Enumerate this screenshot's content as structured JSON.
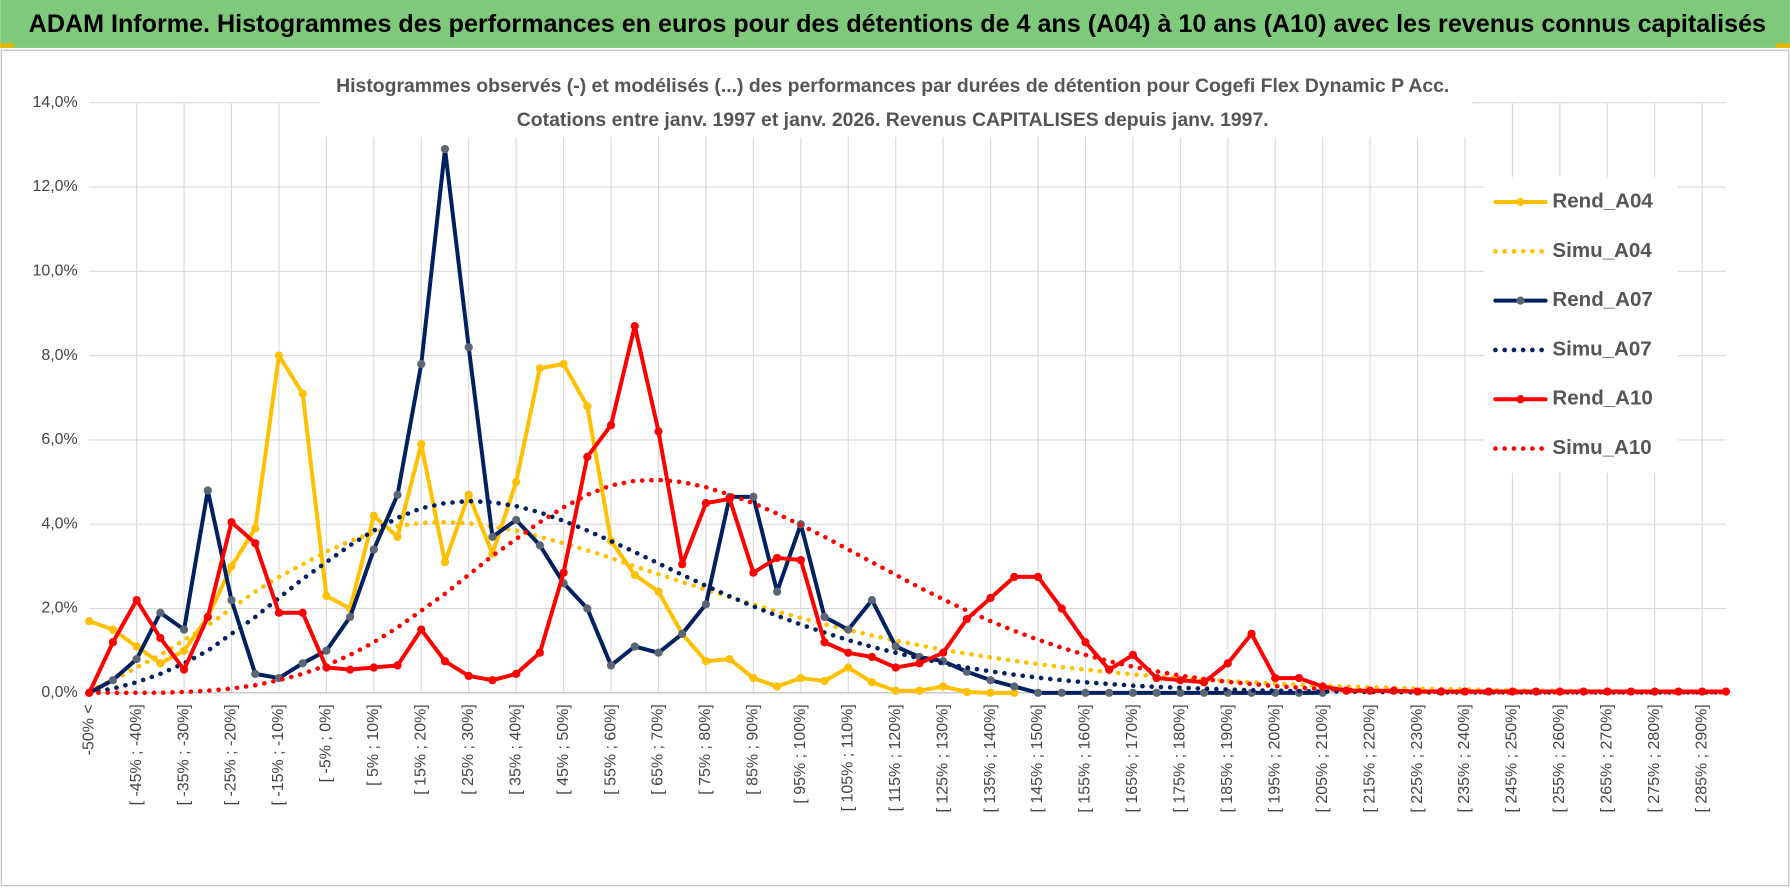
{
  "header": {
    "title": "ADAM Informe. Histogrammes des performances en euros pour des détentions de 4 ans (A04) à 10 ans (A10) avec les revenus connus capitalisés"
  },
  "chart_data": {
    "type": "line",
    "title": "Histogrammes observés (-) et modélisés (...) des performances par durées de détention pour Cogefi Flex Dynamic P Acc.",
    "subtitle": "Cotations entre janv. 1997 et janv. 2026. Revenus CAPITALISES depuis janv. 1997.",
    "categories": [
      "-50% <",
      null,
      "[ -45% ; -40%]",
      null,
      "[ -35% ; -30%]",
      null,
      "[ -25% ; -20%]",
      null,
      "[ -15% ; -10%]",
      null,
      "[ -5% ; 0%]",
      null,
      "[ 5% ; 10%]",
      null,
      "[ 15% ; 20%]",
      null,
      "[ 25% ; 30%]",
      null,
      "[ 35% ; 40%]",
      null,
      "[ 45% ; 50%]",
      null,
      "[ 55% ; 60%]",
      null,
      "[ 65% ; 70%]",
      null,
      "[ 75% ; 80%]",
      null,
      "[ 85% ; 90%]",
      null,
      "[ 95% ; 100%]",
      null,
      "[ 105% ; 110%]",
      null,
      "[ 115% ; 120%]",
      null,
      "[ 125% ; 130%]",
      null,
      "[ 135% ; 140%]",
      null,
      "[ 145% ; 150%]",
      null,
      "[ 155% ; 160%]",
      null,
      "[ 165% ; 170%]",
      null,
      "[ 175% ; 180%]",
      null,
      "[ 185% ; 190%]",
      null,
      "[ 195% ; 200%]",
      null,
      "[ 205% ; 210%]",
      null,
      "[ 215% ; 220%]",
      null,
      "[ 225% ; 230%]",
      null,
      "[ 235% ; 240%]",
      null,
      "[ 245% ; 250%]",
      null,
      "[ 255% ; 260%]",
      null,
      "[ 265% ; 270%]",
      null,
      "[ 275% ; 280%]",
      null,
      "[ 285% ; 290%]",
      null
    ],
    "ylim": [
      0,
      14
    ],
    "yticks": [
      {
        "value": 0,
        "label": "0,0%"
      },
      {
        "value": 2,
        "label": "2,0%"
      },
      {
        "value": 4,
        "label": "4,0%"
      },
      {
        "value": 6,
        "label": "6,0%"
      },
      {
        "value": 8,
        "label": "8,0%"
      },
      {
        "value": 10,
        "label": "10,0%"
      },
      {
        "value": 12,
        "label": "12,0%"
      },
      {
        "value": 14,
        "label": "14,0%"
      }
    ],
    "grid": true,
    "legend": "right",
    "series": [
      {
        "name": "Rend_A04",
        "color": "#ffc000",
        "style": "solid",
        "markers": true,
        "values": [
          1.7,
          1.5,
          1.1,
          0.7,
          1.0,
          1.8,
          3.0,
          3.9,
          8.0,
          7.1,
          2.3,
          2.0,
          4.2,
          3.7,
          5.9,
          3.1,
          4.7,
          3.3,
          5.0,
          7.7,
          7.8,
          6.8,
          3.6,
          2.8,
          2.4,
          1.4,
          0.75,
          0.8,
          0.35,
          0.15,
          0.35,
          0.28,
          0.6,
          0.25,
          0.05,
          0.05,
          0.15,
          0.02,
          0.0,
          0.0,
          null,
          null,
          null,
          null,
          null,
          null,
          null,
          null,
          null,
          null,
          null,
          null,
          null,
          null,
          null,
          null,
          null,
          null,
          null,
          null,
          null,
          null,
          null,
          null,
          null,
          null,
          null,
          null,
          null,
          null
        ]
      },
      {
        "name": "Simu_A04",
        "color": "#ffc000",
        "style": "dotted",
        "markers": false,
        "values": [
          0.05,
          0.3,
          0.6,
          0.9,
          1.25,
          1.6,
          2.0,
          2.4,
          2.75,
          3.05,
          3.35,
          3.6,
          3.8,
          3.95,
          4.03,
          4.05,
          4.02,
          3.95,
          3.85,
          3.7,
          3.55,
          3.38,
          3.2,
          3.0,
          2.82,
          2.63,
          2.45,
          2.27,
          2.1,
          1.93,
          1.78,
          1.63,
          1.49,
          1.36,
          1.24,
          1.13,
          1.02,
          0.93,
          0.84,
          0.76,
          0.68,
          0.61,
          0.55,
          0.49,
          0.44,
          0.39,
          0.35,
          0.31,
          0.28,
          0.25,
          0.22,
          0.19,
          0.17,
          0.15,
          0.13,
          0.12,
          0.1,
          0.09,
          0.08,
          0.07,
          0.06,
          0.05,
          0.05,
          0.04,
          0.04,
          0.03,
          0.03,
          0.02,
          0.02,
          0.02
        ]
      },
      {
        "name": "Rend_A07",
        "color": "#002060",
        "marker_color": "#5b6573",
        "style": "solid",
        "markers": true,
        "values": [
          0.0,
          0.3,
          0.8,
          1.9,
          1.5,
          4.8,
          2.2,
          0.45,
          0.35,
          0.7,
          1.0,
          1.8,
          3.4,
          4.7,
          7.8,
          12.9,
          8.2,
          3.7,
          4.1,
          3.5,
          2.6,
          2.0,
          0.65,
          1.1,
          0.95,
          1.4,
          2.1,
          4.65,
          4.65,
          2.4,
          4.0,
          1.8,
          1.5,
          2.2,
          1.1,
          0.85,
          0.75,
          0.5,
          0.3,
          0.15,
          0.0,
          0.0,
          0.0,
          0.0,
          0.0,
          0.0,
          0.0,
          0.0,
          0.0,
          0.0,
          0.0,
          0.0,
          0.0,
          null,
          null,
          null,
          null,
          null,
          null,
          null,
          null,
          null,
          null,
          null,
          null,
          null,
          null,
          null,
          null,
          null
        ]
      },
      {
        "name": "Simu_A07",
        "color": "#002060",
        "style": "dotted",
        "markers": false,
        "values": [
          0.0,
          0.1,
          0.25,
          0.45,
          0.7,
          1.0,
          1.4,
          1.8,
          2.25,
          2.7,
          3.1,
          3.5,
          3.85,
          4.15,
          4.38,
          4.5,
          4.55,
          4.52,
          4.43,
          4.28,
          4.08,
          3.85,
          3.6,
          3.34,
          3.07,
          2.8,
          2.54,
          2.29,
          2.05,
          1.83,
          1.62,
          1.43,
          1.25,
          1.09,
          0.95,
          0.82,
          0.7,
          0.6,
          0.51,
          0.43,
          0.36,
          0.3,
          0.25,
          0.21,
          0.17,
          0.14,
          0.12,
          0.1,
          0.08,
          0.06,
          0.05,
          0.04,
          0.03,
          0.03,
          0.02,
          0.02,
          0.01,
          0.01,
          0.01,
          0.01,
          0.01,
          0.01,
          0.01,
          0.01,
          0.01,
          0.01,
          0.01,
          0.01,
          0.01,
          0.01
        ]
      },
      {
        "name": "Rend_A10",
        "color": "#ff0000",
        "style": "solid",
        "markers": true,
        "values": [
          0.0,
          1.2,
          2.2,
          1.3,
          0.55,
          1.8,
          4.05,
          3.55,
          1.9,
          1.9,
          0.6,
          0.55,
          0.6,
          0.65,
          1.5,
          0.75,
          0.4,
          0.3,
          0.45,
          0.95,
          2.85,
          5.6,
          6.35,
          8.7,
          6.2,
          3.05,
          4.5,
          4.6,
          2.85,
          3.2,
          3.15,
          1.2,
          0.95,
          0.85,
          0.6,
          0.7,
          0.95,
          1.75,
          2.25,
          2.75,
          2.75,
          2.0,
          1.2,
          0.55,
          0.9,
          0.35,
          0.3,
          0.25,
          0.7,
          1.4,
          0.35,
          0.35,
          0.15,
          0.05,
          0.05,
          0.05,
          0.03,
          0.03,
          0.03,
          0.03,
          0.03,
          0.03,
          0.03,
          0.03,
          0.03,
          0.03,
          0.03,
          0.03,
          0.03,
          0.03
        ]
      },
      {
        "name": "Simu_A10",
        "color": "#ff0000",
        "style": "dotted",
        "markers": false,
        "values": [
          0.0,
          0.0,
          0.0,
          0.0,
          0.02,
          0.05,
          0.1,
          0.18,
          0.3,
          0.45,
          0.65,
          0.9,
          1.2,
          1.55,
          1.95,
          2.35,
          2.8,
          3.25,
          3.65,
          4.05,
          4.4,
          4.7,
          4.92,
          5.03,
          5.05,
          5.0,
          4.88,
          4.7,
          4.5,
          4.25,
          3.98,
          3.7,
          3.4,
          3.1,
          2.8,
          2.5,
          2.22,
          1.95,
          1.7,
          1.47,
          1.26,
          1.07,
          0.9,
          0.75,
          0.62,
          0.51,
          0.41,
          0.33,
          0.26,
          0.21,
          0.16,
          0.12,
          0.09,
          0.07,
          0.05,
          0.04,
          0.03,
          0.02,
          0.02,
          0.01,
          0.01,
          0.01,
          0.01,
          0.01,
          0.01,
          0.01,
          0.01,
          0.01,
          0.01,
          0.01
        ]
      }
    ]
  }
}
